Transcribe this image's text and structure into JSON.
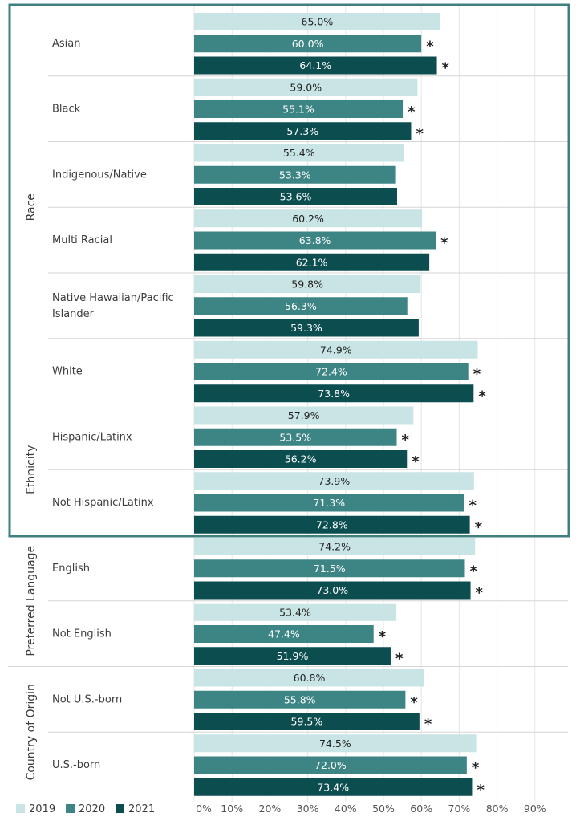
{
  "chart_data": {
    "type": "bar",
    "orientation": "horizontal",
    "xlim": [
      0,
      100
    ],
    "ticks": [
      "0%",
      "10%",
      "20%",
      "30%",
      "40%",
      "50%",
      "60%",
      "70%",
      "80%",
      "90%"
    ],
    "legend_position": "bottom-left",
    "series": [
      {
        "name": "2019",
        "color": "#c9e4e4"
      },
      {
        "name": "2020",
        "color": "#3d8585"
      },
      {
        "name": "2021",
        "color": "#0c4d50"
      }
    ],
    "groups": [
      {
        "label": "Race",
        "categories": [
          {
            "label": "Asian",
            "values": [
              65.0,
              60.0,
              64.1
            ],
            "text": [
              "65.0%",
              "60.0%",
              "64.1%"
            ],
            "sig": [
              false,
              true,
              true
            ]
          },
          {
            "label": "Black",
            "values": [
              59.0,
              55.1,
              57.3
            ],
            "text": [
              "59.0%",
              "55.1%",
              "57.3%"
            ],
            "sig": [
              false,
              true,
              true
            ]
          },
          {
            "label": "Indigenous/Native",
            "values": [
              55.4,
              53.3,
              53.6
            ],
            "text": [
              "55.4%",
              "53.3%",
              "53.6%"
            ],
            "sig": [
              false,
              false,
              false
            ]
          },
          {
            "label": "Multi Racial",
            "values": [
              60.2,
              63.8,
              62.1
            ],
            "text": [
              "60.2%",
              "63.8%",
              "62.1%"
            ],
            "sig": [
              false,
              true,
              false
            ]
          },
          {
            "label": "Native Hawaiian/Pacific Islander",
            "label_lines": [
              "Native Hawaiian/Pacific",
              "Islander"
            ],
            "values": [
              59.8,
              56.3,
              59.3
            ],
            "text": [
              "59.8%",
              "56.3%",
              "59.3%"
            ],
            "sig": [
              false,
              false,
              false
            ]
          },
          {
            "label": "White",
            "values": [
              74.9,
              72.4,
              73.8
            ],
            "text": [
              "74.9%",
              "72.4%",
              "73.8%"
            ],
            "sig": [
              false,
              true,
              true
            ]
          }
        ]
      },
      {
        "label": "Ethnicity",
        "categories": [
          {
            "label": "Hispanic/Latinx",
            "values": [
              57.9,
              53.5,
              56.2
            ],
            "text": [
              "57.9%",
              "53.5%",
              "56.2%"
            ],
            "sig": [
              false,
              true,
              true
            ]
          },
          {
            "label": "Not Hispanic/Latinx",
            "values": [
              73.9,
              71.3,
              72.8
            ],
            "text": [
              "73.9%",
              "71.3%",
              "72.8%"
            ],
            "sig": [
              false,
              true,
              true
            ]
          }
        ]
      },
      {
        "label": "Preferred Language",
        "categories": [
          {
            "label": "English",
            "values": [
              74.2,
              71.5,
              73.0
            ],
            "text": [
              "74.2%",
              "71.5%",
              "73.0%"
            ],
            "sig": [
              false,
              true,
              true
            ]
          },
          {
            "label": "Not English",
            "values": [
              53.4,
              47.4,
              51.9
            ],
            "text": [
              "53.4%",
              "47.4%",
              "51.9%"
            ],
            "sig": [
              false,
              true,
              true
            ]
          }
        ]
      },
      {
        "label": "Country of Origin",
        "categories": [
          {
            "label": "Not U.S.-born",
            "values": [
              60.8,
              55.8,
              59.5
            ],
            "text": [
              "60.8%",
              "55.8%",
              "59.5%"
            ],
            "sig": [
              false,
              true,
              true
            ]
          },
          {
            "label": "U.S.-born",
            "values": [
              74.5,
              72.0,
              73.4
            ],
            "text": [
              "74.5%",
              "72.0%",
              "73.4%"
            ],
            "sig": [
              false,
              true,
              true
            ]
          }
        ]
      }
    ],
    "significance_marker": "*",
    "highlight_box": {
      "groups": [
        "Race",
        "Ethnicity"
      ],
      "color": "#3f7f80"
    }
  }
}
